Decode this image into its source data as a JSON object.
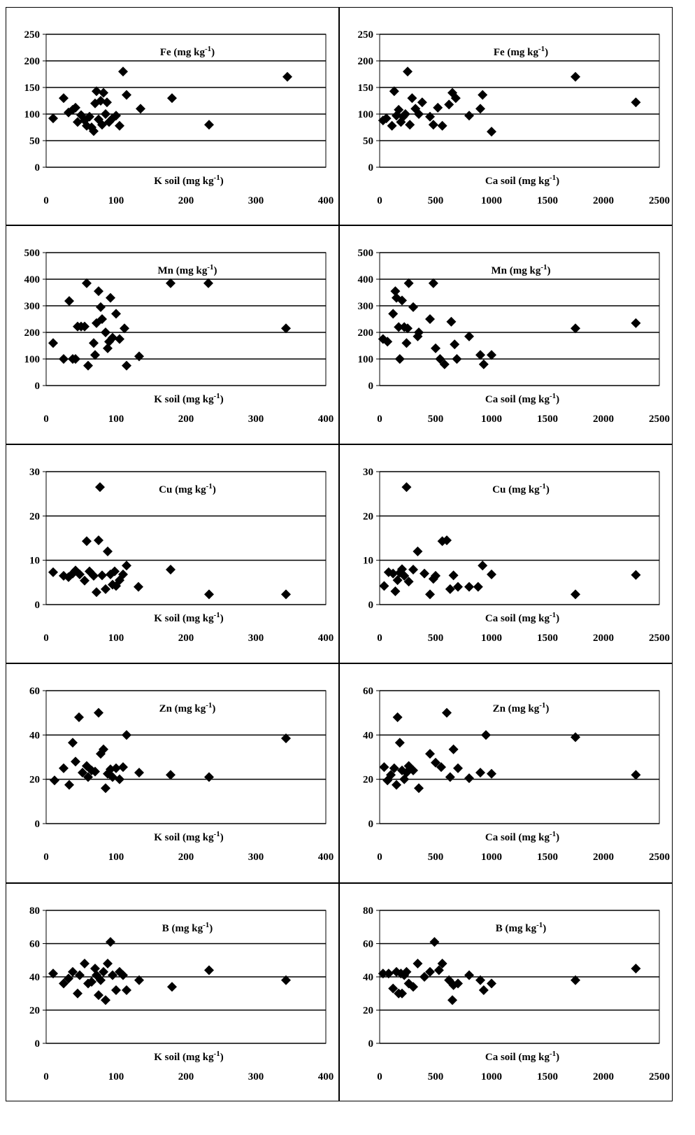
{
  "page": {
    "watermark": "seal"
  },
  "chart_data": [
    {
      "type": "scatter",
      "title": "Fe (mg kg-1)",
      "title_main": "Fe (mg kg",
      "title_sup": "-1",
      "title_close": ")",
      "xlabel_main": "K soil (mg kg",
      "xlabel_sup": "-1",
      "xlabel_close": ")",
      "xlim": [
        0,
        400
      ],
      "ylim": [
        0,
        250
      ],
      "xticks": [
        0,
        100,
        200,
        300,
        400
      ],
      "yticks": [
        0,
        50,
        100,
        150,
        200,
        250
      ],
      "grid": true,
      "marker_color": "#000000",
      "x": [
        10,
        25,
        32,
        38,
        42,
        45,
        50,
        55,
        58,
        62,
        65,
        68,
        70,
        72,
        75,
        78,
        80,
        82,
        85,
        87,
        90,
        95,
        100,
        105,
        110,
        115,
        135,
        180,
        233,
        345
      ],
      "y": [
        92,
        130,
        103,
        108,
        112,
        85,
        98,
        88,
        78,
        95,
        75,
        68,
        120,
        143,
        90,
        125,
        80,
        140,
        100,
        122,
        85,
        92,
        97,
        78,
        180,
        136,
        110,
        130,
        80,
        170
      ]
    },
    {
      "type": "scatter",
      "title": "Fe (mg kg-1)",
      "title_main": "Fe (mg kg",
      "title_sup": "-1",
      "title_close": ")",
      "xlabel_main": "Ca soil (mg kg",
      "xlabel_sup": "-1",
      "xlabel_close": ")",
      "xlim": [
        0,
        2500
      ],
      "ylim": [
        0,
        250
      ],
      "xticks": [
        0,
        500,
        1000,
        1500,
        2000,
        2500
      ],
      "yticks": [
        0,
        50,
        100,
        150,
        200,
        250
      ],
      "grid": true,
      "marker_color": "#000000",
      "x": [
        30,
        60,
        110,
        130,
        150,
        170,
        190,
        210,
        230,
        250,
        270,
        290,
        320,
        350,
        380,
        450,
        480,
        520,
        560,
        620,
        650,
        680,
        800,
        900,
        920,
        1000,
        1750,
        2290
      ],
      "y": [
        88,
        92,
        78,
        143,
        97,
        108,
        85,
        95,
        100,
        180,
        80,
        130,
        110,
        100,
        122,
        95,
        80,
        112,
        78,
        118,
        140,
        130,
        97,
        110,
        136,
        67,
        170,
        122
      ]
    },
    {
      "type": "scatter",
      "title": "Mn (mg kg-1)",
      "title_main": "Mn (mg kg",
      "title_sup": "-1",
      "title_close": ")",
      "xlabel_main": "K soil (mg kg",
      "xlabel_sup": "-1",
      "xlabel_close": ")",
      "xlim": [
        0,
        400
      ],
      "ylim": [
        0,
        500
      ],
      "xticks": [
        0,
        100,
        200,
        300,
        400
      ],
      "yticks": [
        0,
        100,
        200,
        300,
        400,
        500
      ],
      "grid": true,
      "marker_color": "#000000",
      "x": [
        10,
        25,
        33,
        38,
        42,
        45,
        50,
        55,
        58,
        60,
        68,
        70,
        72,
        75,
        78,
        80,
        85,
        88,
        90,
        92,
        95,
        100,
        105,
        112,
        115,
        133,
        178,
        232,
        343
      ],
      "y": [
        160,
        100,
        318,
        100,
        100,
        222,
        222,
        222,
        385,
        75,
        160,
        115,
        235,
        355,
        295,
        250,
        200,
        140,
        165,
        330,
        180,
        270,
        175,
        215,
        75,
        110,
        385,
        385,
        215
      ]
    },
    {
      "type": "scatter",
      "title": "Mn (mg kg-1)",
      "title_main": "Mn (mg kg",
      "title_sup": "-1",
      "title_close": ")",
      "xlabel_main": "Ca soil (mg kg",
      "xlabel_sup": "-1",
      "xlabel_close": ")",
      "xlim": [
        0,
        2500
      ],
      "ylim": [
        0,
        500
      ],
      "xticks": [
        0,
        500,
        1000,
        1500,
        2000,
        2500
      ],
      "yticks": [
        0,
        100,
        200,
        300,
        400,
        500
      ],
      "grid": true,
      "marker_color": "#000000",
      "x": [
        30,
        70,
        120,
        140,
        150,
        170,
        180,
        200,
        220,
        240,
        250,
        260,
        300,
        340,
        350,
        450,
        480,
        500,
        540,
        580,
        640,
        670,
        690,
        800,
        900,
        930,
        1000,
        1750,
        2290
      ],
      "y": [
        175,
        165,
        270,
        355,
        330,
        220,
        100,
        320,
        220,
        160,
        215,
        385,
        295,
        185,
        200,
        250,
        385,
        140,
        100,
        80,
        240,
        155,
        100,
        185,
        115,
        80,
        115,
        215,
        235
      ]
    },
    {
      "type": "scatter",
      "title": "Cu (mg kg-1)",
      "title_main": "Cu (mg kg",
      "title_sup": "-1",
      "title_close": ")",
      "xlabel_main": "K soil (mg kg",
      "xlabel_sup": "-1",
      "xlabel_close": ")",
      "xlim": [
        0,
        400
      ],
      "ylim": [
        0,
        30
      ],
      "xticks": [
        0,
        100,
        200,
        300,
        400
      ],
      "yticks": [
        0,
        10,
        20,
        30
      ],
      "grid": true,
      "marker_color": "#000000",
      "x": [
        10,
        25,
        32,
        38,
        42,
        48,
        55,
        58,
        62,
        68,
        72,
        75,
        77,
        80,
        85,
        88,
        92,
        95,
        98,
        100,
        105,
        110,
        115,
        132,
        178,
        233,
        343
      ],
      "y": [
        7.3,
        6.5,
        6.2,
        7.0,
        7.7,
        6.8,
        5.4,
        14.3,
        7.5,
        6.5,
        2.8,
        14.5,
        26.5,
        6.6,
        3.5,
        12.0,
        6.8,
        4.5,
        7.5,
        4.2,
        5.5,
        6.8,
        8.8,
        4.0,
        7.9,
        2.3,
        2.3
      ]
    },
    {
      "type": "scatter",
      "title": "Cu (mg kg-1)",
      "title_main": "Cu (mg kg",
      "title_sup": "-1",
      "title_close": ")",
      "xlabel_main": "Ca soil (mg kg",
      "xlabel_sup": "-1",
      "xlabel_close": ")",
      "xlim": [
        0,
        2500
      ],
      "ylim": [
        0,
        30
      ],
      "xticks": [
        0,
        500,
        1000,
        1500,
        2000,
        2500
      ],
      "yticks": [
        0,
        10,
        20,
        30
      ],
      "grid": true,
      "marker_color": "#000000",
      "x": [
        40,
        80,
        120,
        140,
        160,
        180,
        200,
        220,
        240,
        260,
        300,
        340,
        400,
        450,
        480,
        500,
        560,
        600,
        630,
        660,
        700,
        800,
        880,
        920,
        1000,
        1750,
        2290
      ],
      "y": [
        4.2,
        7.3,
        7.0,
        3.0,
        5.5,
        7.2,
        8.0,
        6.5,
        26.5,
        5.2,
        7.9,
        12.0,
        7.0,
        2.3,
        5.8,
        6.5,
        14.3,
        14.5,
        3.5,
        6.6,
        4.0,
        4.0,
        4.0,
        8.8,
        6.8,
        2.3,
        6.7
      ]
    },
    {
      "type": "scatter",
      "title": "Zn (mg kg-1)",
      "title_main": "Zn (mg kg",
      "title_sup": "-1",
      "title_close": ")",
      "xlabel_main": "K soil (mg kg",
      "xlabel_sup": "-1",
      "xlabel_close": ")",
      "xlim": [
        0,
        400
      ],
      "ylim": [
        0,
        60
      ],
      "xticks": [
        0,
        100,
        200,
        300,
        400
      ],
      "yticks": [
        0,
        20,
        40,
        60
      ],
      "grid": true,
      "marker_color": "#000000",
      "x": [
        12,
        25,
        33,
        38,
        42,
        47,
        52,
        58,
        60,
        65,
        70,
        75,
        78,
        82,
        85,
        88,
        92,
        95,
        100,
        105,
        110,
        115,
        133,
        178,
        233,
        343
      ],
      "y": [
        19.5,
        25.0,
        17.5,
        36.5,
        28.0,
        48.0,
        23.0,
        26.0,
        21.0,
        24.0,
        23.5,
        50.0,
        31.5,
        33.5,
        16.0,
        22.5,
        24.5,
        21.0,
        25.0,
        20.0,
        25.5,
        40.0,
        23.0,
        22.0,
        21.0,
        38.5
      ]
    },
    {
      "type": "scatter",
      "title": "Zn (mg kg-1)",
      "title_main": "Zn (mg kg",
      "title_sup": "-1",
      "title_close": ")",
      "xlabel_main": "Ca soil (mg kg",
      "xlabel_sup": "-1",
      "xlabel_close": ")",
      "xlim": [
        0,
        2500
      ],
      "ylim": [
        0,
        60
      ],
      "xticks": [
        0,
        500,
        1000,
        1500,
        2000,
        2500
      ],
      "yticks": [
        0,
        20,
        40,
        60
      ],
      "grid": true,
      "marker_color": "#000000",
      "x": [
        40,
        70,
        100,
        130,
        150,
        160,
        180,
        200,
        220,
        240,
        260,
        300,
        350,
        450,
        500,
        550,
        600,
        630,
        660,
        700,
        800,
        900,
        950,
        1000,
        1750,
        2290
      ],
      "y": [
        25.5,
        19.5,
        22.0,
        25.0,
        17.5,
        48.0,
        36.5,
        24.0,
        20.0,
        23.0,
        26.0,
        24.0,
        16.0,
        31.5,
        27.5,
        25.5,
        50.0,
        21.0,
        33.5,
        25.0,
        20.5,
        23.0,
        40.0,
        22.5,
        39.0,
        22.0
      ]
    },
    {
      "type": "scatter",
      "title": "B (mg kg-1)",
      "title_main": "B (mg kg",
      "title_sup": "-1",
      "title_close": ")",
      "xlabel_main": "K soil (mg kg",
      "xlabel_sup": "-1",
      "xlabel_close": ")",
      "xlim": [
        0,
        400
      ],
      "ylim": [
        0,
        80
      ],
      "xticks": [
        0,
        100,
        200,
        300,
        400
      ],
      "yticks": [
        0,
        20,
        40,
        60,
        80
      ],
      "grid": true,
      "marker_color": "#000000",
      "x": [
        10,
        25,
        32,
        38,
        45,
        48,
        55,
        60,
        65,
        70,
        72,
        75,
        78,
        82,
        85,
        88,
        92,
        95,
        100,
        105,
        110,
        115,
        133,
        180,
        233,
        343
      ],
      "y": [
        42,
        36,
        39,
        43,
        30,
        41,
        48,
        36,
        37,
        45,
        41,
        29,
        38,
        43,
        26,
        48,
        61,
        41,
        32,
        43,
        41,
        32,
        38,
        34,
        44,
        38
      ]
    },
    {
      "type": "scatter",
      "title": "B (mg kg-1)",
      "title_main": "B (mg kg",
      "title_sup": "-1",
      "title_close": ")",
      "xlabel_main": "Ca soil (mg kg",
      "xlabel_sup": "-1",
      "xlabel_close": ")",
      "xlim": [
        0,
        2500
      ],
      "ylim": [
        0,
        80
      ],
      "xticks": [
        0,
        500,
        1000,
        1500,
        2000,
        2500
      ],
      "yticks": [
        0,
        20,
        40,
        60,
        80
      ],
      "grid": true,
      "marker_color": "#000000",
      "x": [
        30,
        80,
        120,
        150,
        170,
        190,
        200,
        220,
        240,
        260,
        300,
        340,
        400,
        450,
        490,
        530,
        560,
        620,
        650,
        660,
        700,
        800,
        900,
        930,
        1000,
        1750,
        2290
      ],
      "y": [
        42,
        42,
        33,
        43,
        30,
        42,
        30,
        41,
        43,
        36,
        34,
        48,
        40,
        43,
        61,
        44,
        48,
        38,
        26,
        35,
        36,
        41,
        38,
        32,
        36,
        38,
        45
      ]
    }
  ]
}
